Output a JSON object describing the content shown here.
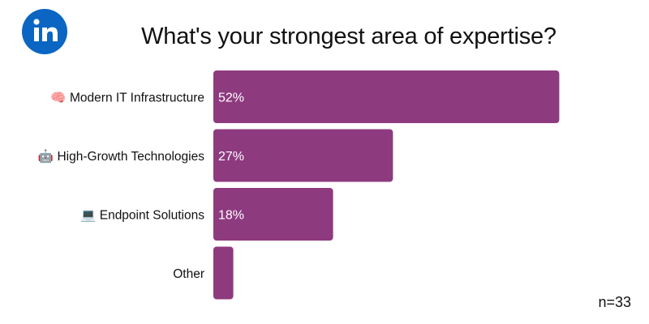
{
  "brand": {
    "logo_text": "in",
    "logo_color": "#0a66c2"
  },
  "sample_note": "n=33",
  "chart_data": {
    "type": "bar",
    "orientation": "horizontal",
    "title": "What's your strongest area of expertise?",
    "categories": [
      {
        "icon": "🧠",
        "label": "Modern IT Infrastructure"
      },
      {
        "icon": "🤖",
        "label": "High-Growth Technologies"
      },
      {
        "icon": "💻",
        "label": "Endpoint Solutions"
      },
      {
        "icon": "",
        "label": "Other"
      }
    ],
    "values": [
      52,
      27,
      18,
      3
    ],
    "value_labels": [
      "52%",
      "27%",
      "18%",
      ""
    ],
    "unit": "%",
    "xlim": [
      0,
      100
    ],
    "bar_color": "#8e3a7f",
    "value_label_color": "#ffffff",
    "grid": false,
    "legend": "none"
  }
}
